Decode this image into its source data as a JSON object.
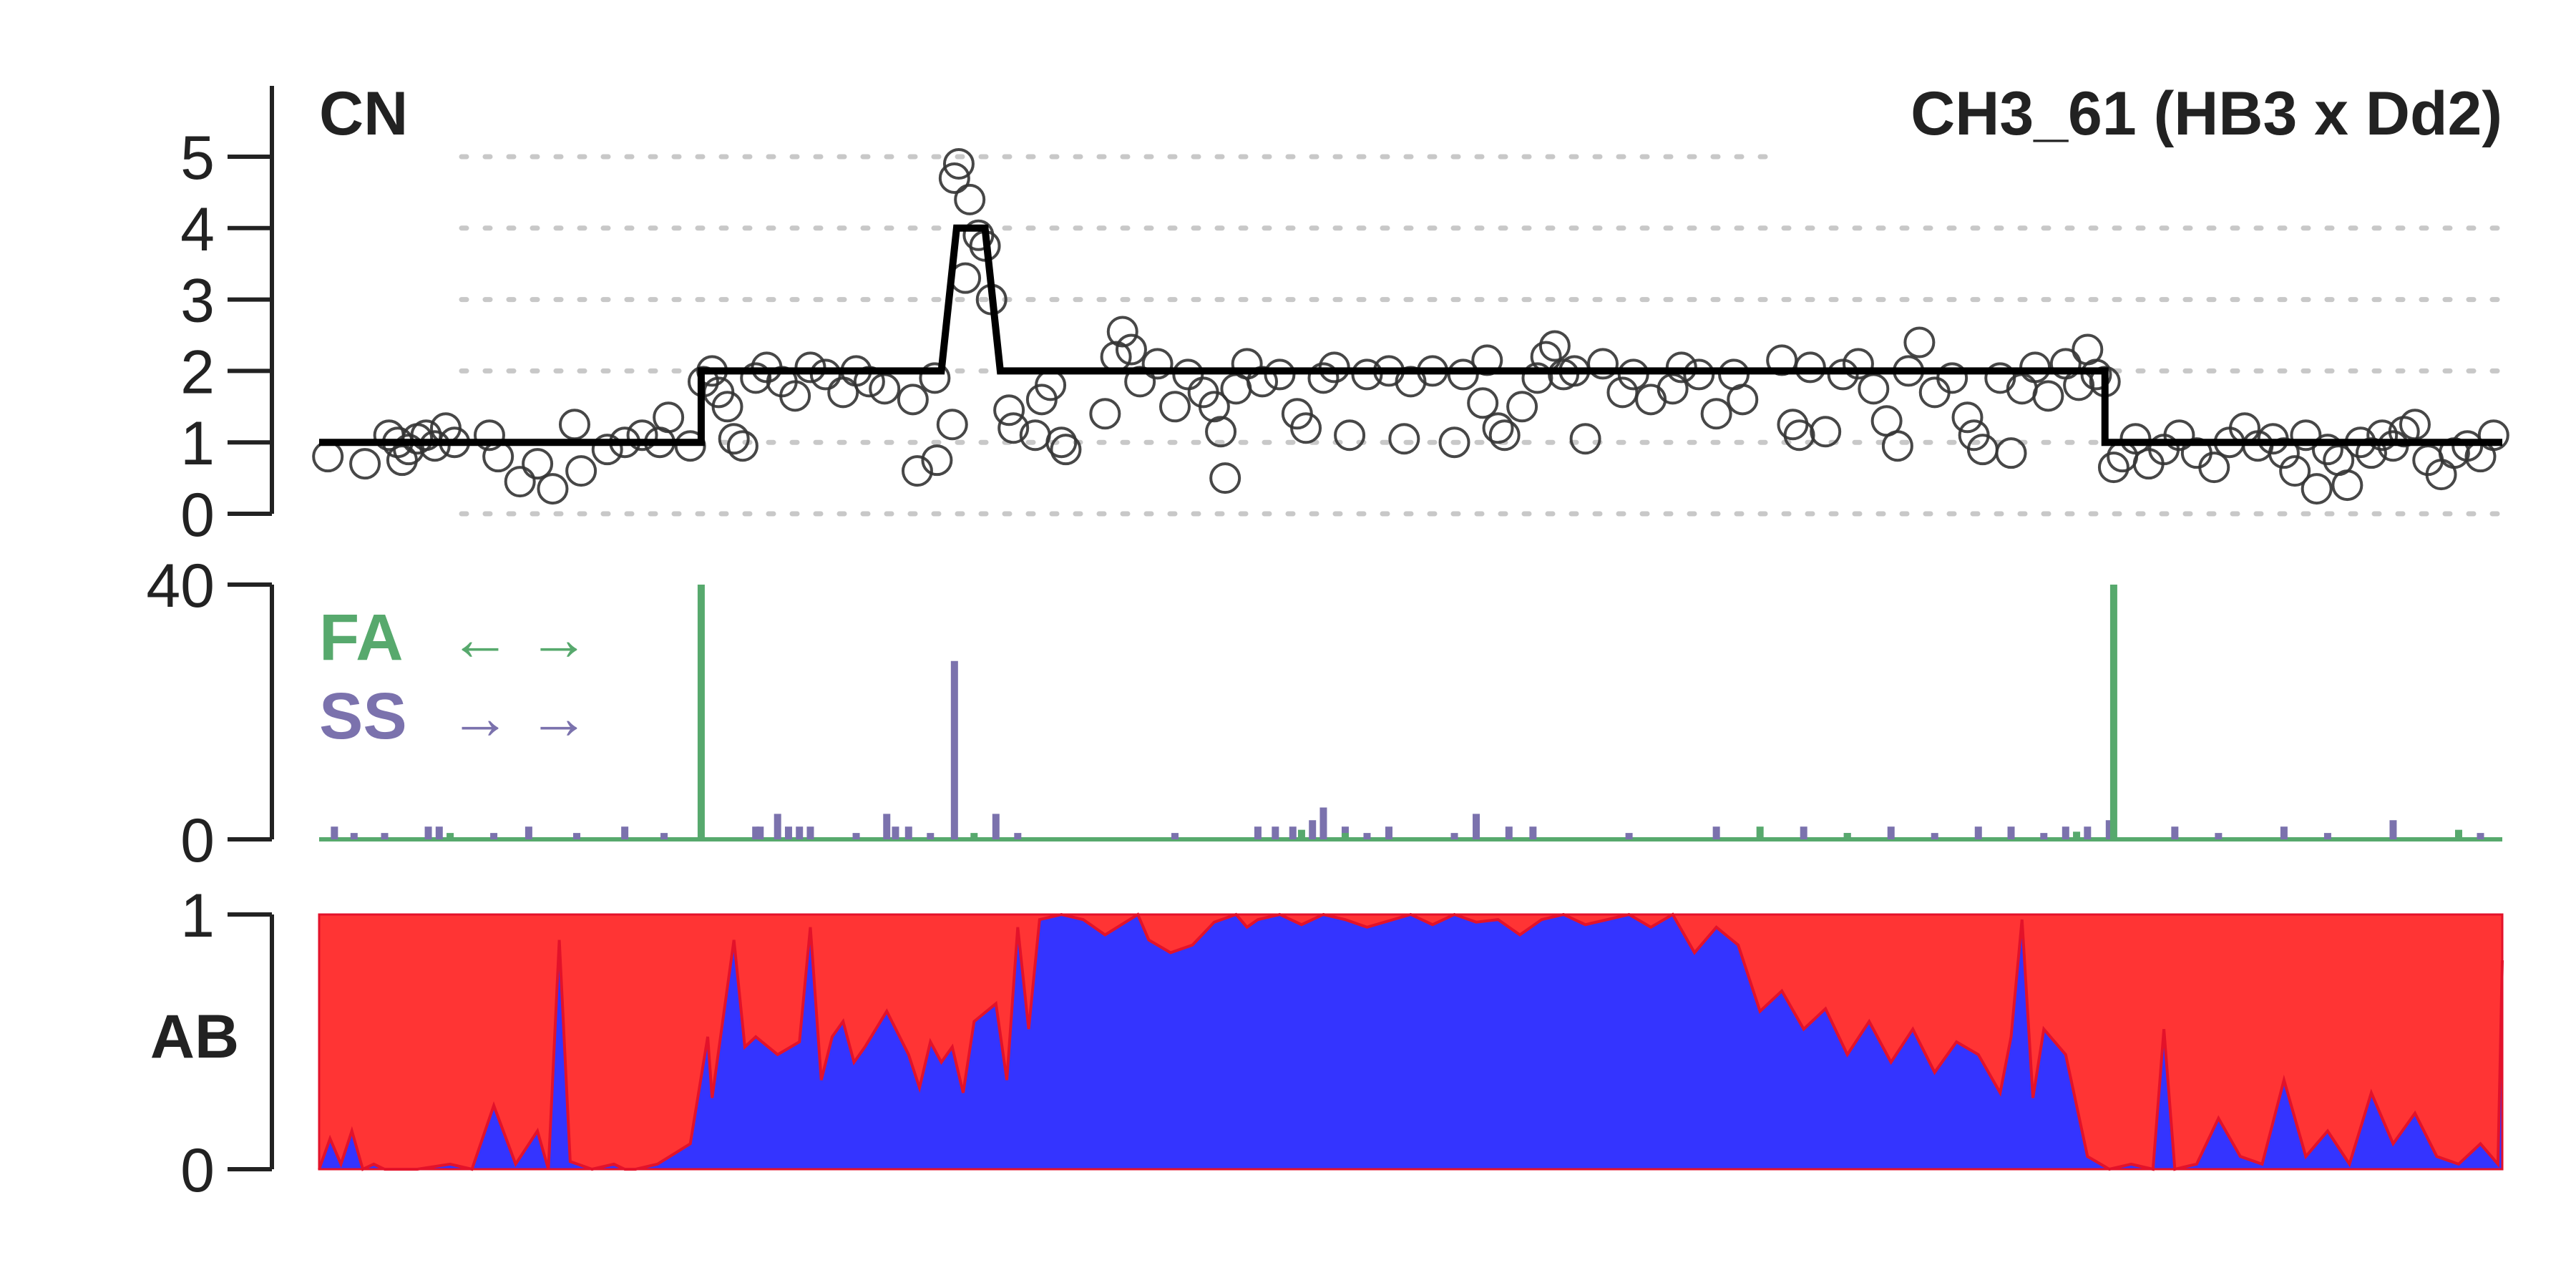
{
  "colors": {
    "axis": "#222222",
    "grid": "#c8c8c8",
    "points": "#333333",
    "segment": "#000000",
    "fa": "#57a96d",
    "ss": "#7b72ad",
    "ab_red": "#ff3434",
    "ab_blue": "#3434ff",
    "ab_edge": "#e3122a"
  },
  "title": "CH3_61 (HB3 x Dd2)",
  "chart_data": [
    {
      "type": "scatter",
      "panel": "copy-number",
      "ylabel": "CN",
      "ylim": [
        0,
        5
      ],
      "yticks": [
        0,
        1,
        2,
        3,
        4,
        5
      ],
      "grid": true,
      "xlim": [
        0,
        1
      ],
      "segments": [
        {
          "x_start": 0.0,
          "x_end": 0.175,
          "cn": 1
        },
        {
          "x_start": 0.175,
          "x_end": 0.285,
          "cn": 2
        },
        {
          "x_start": 0.292,
          "x_end": 0.305,
          "cn": 4
        },
        {
          "x_start": 0.312,
          "x_end": 0.818,
          "cn": 2
        },
        {
          "x_start": 0.818,
          "x_end": 1.0,
          "cn": 1
        }
      ],
      "points": [
        [
          0.004,
          0.8
        ],
        [
          0.021,
          0.7
        ],
        [
          0.032,
          1.1
        ],
        [
          0.036,
          1.0
        ],
        [
          0.038,
          0.75
        ],
        [
          0.041,
          0.9
        ],
        [
          0.045,
          1.05
        ],
        [
          0.049,
          1.1
        ],
        [
          0.053,
          0.95
        ],
        [
          0.058,
          1.2
        ],
        [
          0.062,
          1.0
        ],
        [
          0.078,
          1.1
        ],
        [
          0.082,
          0.8
        ],
        [
          0.092,
          0.45
        ],
        [
          0.1,
          0.7
        ],
        [
          0.107,
          0.35
        ],
        [
          0.117,
          1.25
        ],
        [
          0.12,
          0.6
        ],
        [
          0.132,
          0.9
        ],
        [
          0.14,
          1.0
        ],
        [
          0.148,
          1.1
        ],
        [
          0.156,
          1.0
        ],
        [
          0.16,
          1.35
        ],
        [
          0.17,
          0.95
        ],
        [
          0.176,
          1.85
        ],
        [
          0.18,
          2.0
        ],
        [
          0.183,
          1.7
        ],
        [
          0.187,
          1.5
        ],
        [
          0.19,
          1.05
        ],
        [
          0.194,
          0.95
        ],
        [
          0.2,
          1.9
        ],
        [
          0.205,
          2.05
        ],
        [
          0.212,
          1.85
        ],
        [
          0.218,
          1.65
        ],
        [
          0.225,
          2.05
        ],
        [
          0.232,
          1.95
        ],
        [
          0.24,
          1.7
        ],
        [
          0.246,
          2.0
        ],
        [
          0.252,
          1.85
        ],
        [
          0.259,
          1.75
        ],
        [
          0.272,
          1.6
        ],
        [
          0.274,
          0.6
        ],
        [
          0.282,
          1.9
        ],
        [
          0.283,
          0.75
        ],
        [
          0.29,
          1.25
        ],
        [
          0.291,
          4.7
        ],
        [
          0.293,
          4.9
        ],
        [
          0.296,
          3.3
        ],
        [
          0.298,
          4.4
        ],
        [
          0.302,
          3.9
        ],
        [
          0.305,
          3.75
        ],
        [
          0.308,
          3.0
        ],
        [
          0.316,
          1.45
        ],
        [
          0.318,
          1.2
        ],
        [
          0.328,
          1.1
        ],
        [
          0.331,
          1.6
        ],
        [
          0.335,
          1.8
        ],
        [
          0.34,
          1.0
        ],
        [
          0.342,
          0.9
        ],
        [
          0.36,
          1.4
        ],
        [
          0.365,
          2.2
        ],
        [
          0.368,
          2.55
        ],
        [
          0.372,
          2.3
        ],
        [
          0.376,
          1.85
        ],
        [
          0.384,
          2.1
        ],
        [
          0.392,
          1.5
        ],
        [
          0.398,
          1.95
        ],
        [
          0.405,
          1.7
        ],
        [
          0.41,
          1.5
        ],
        [
          0.413,
          1.15
        ],
        [
          0.415,
          0.5
        ],
        [
          0.42,
          1.75
        ],
        [
          0.425,
          2.1
        ],
        [
          0.432,
          1.85
        ],
        [
          0.44,
          1.95
        ],
        [
          0.448,
          1.4
        ],
        [
          0.452,
          1.2
        ],
        [
          0.46,
          1.9
        ],
        [
          0.465,
          2.05
        ],
        [
          0.472,
          1.1
        ],
        [
          0.48,
          1.95
        ],
        [
          0.49,
          2.0
        ],
        [
          0.497,
          1.05
        ],
        [
          0.5,
          1.85
        ],
        [
          0.51,
          2.0
        ],
        [
          0.52,
          1.0
        ],
        [
          0.524,
          1.95
        ],
        [
          0.533,
          1.55
        ],
        [
          0.535,
          2.15
        ],
        [
          0.54,
          1.2
        ],
        [
          0.543,
          1.1
        ],
        [
          0.551,
          1.5
        ],
        [
          0.558,
          1.9
        ],
        [
          0.562,
          2.2
        ],
        [
          0.566,
          2.35
        ],
        [
          0.57,
          1.95
        ],
        [
          0.575,
          2.0
        ],
        [
          0.58,
          1.05
        ],
        [
          0.588,
          2.1
        ],
        [
          0.597,
          1.7
        ],
        [
          0.602,
          1.95
        ],
        [
          0.61,
          1.6
        ],
        [
          0.62,
          1.75
        ],
        [
          0.624,
          2.05
        ],
        [
          0.632,
          1.95
        ],
        [
          0.64,
          1.4
        ],
        [
          0.648,
          1.95
        ],
        [
          0.652,
          1.6
        ],
        [
          0.67,
          2.15
        ],
        [
          0.675,
          1.25
        ],
        [
          0.678,
          1.1
        ],
        [
          0.683,
          2.05
        ],
        [
          0.69,
          1.15
        ],
        [
          0.698,
          1.95
        ],
        [
          0.705,
          2.1
        ],
        [
          0.712,
          1.75
        ],
        [
          0.718,
          1.3
        ],
        [
          0.723,
          0.95
        ],
        [
          0.728,
          2.0
        ],
        [
          0.733,
          2.4
        ],
        [
          0.74,
          1.7
        ],
        [
          0.748,
          1.9
        ],
        [
          0.755,
          1.35
        ],
        [
          0.758,
          1.1
        ],
        [
          0.762,
          0.9
        ],
        [
          0.77,
          1.9
        ],
        [
          0.775,
          0.85
        ],
        [
          0.78,
          1.75
        ],
        [
          0.786,
          2.05
        ],
        [
          0.792,
          1.65
        ],
        [
          0.8,
          2.1
        ],
        [
          0.806,
          1.8
        ],
        [
          0.81,
          2.3
        ],
        [
          0.814,
          1.95
        ],
        [
          0.818,
          1.85
        ],
        [
          0.822,
          0.65
        ],
        [
          0.826,
          0.8
        ],
        [
          0.832,
          1.05
        ],
        [
          0.838,
          0.7
        ],
        [
          0.845,
          0.9
        ],
        [
          0.852,
          1.1
        ],
        [
          0.86,
          0.85
        ],
        [
          0.868,
          0.65
        ],
        [
          0.875,
          1.0
        ],
        [
          0.882,
          1.2
        ],
        [
          0.888,
          0.95
        ],
        [
          0.895,
          1.05
        ],
        [
          0.9,
          0.85
        ],
        [
          0.905,
          0.6
        ],
        [
          0.91,
          1.1
        ],
        [
          0.915,
          0.35
        ],
        [
          0.92,
          0.9
        ],
        [
          0.925,
          0.75
        ],
        [
          0.929,
          0.4
        ],
        [
          0.935,
          1.0
        ],
        [
          0.94,
          0.85
        ],
        [
          0.945,
          1.1
        ],
        [
          0.95,
          0.95
        ],
        [
          0.955,
          1.15
        ],
        [
          0.96,
          1.25
        ],
        [
          0.966,
          0.75
        ],
        [
          0.972,
          0.55
        ],
        [
          0.978,
          0.85
        ],
        [
          0.984,
          0.95
        ],
        [
          0.99,
          0.8
        ],
        [
          0.996,
          1.1
        ]
      ]
    },
    {
      "type": "bar",
      "panel": "crossover-counts",
      "ylim": [
        0,
        40
      ],
      "yticks": [
        0,
        40
      ],
      "xlim": [
        0,
        1
      ],
      "legend": {
        "placement": "top-left",
        "entries": [
          {
            "name": "FA",
            "symbol": "← →"
          },
          {
            "name": "SS",
            "symbol": "→ →"
          }
        ]
      },
      "series": [
        {
          "name": "FA",
          "bars": [
            [
              0.175,
              40
            ],
            [
              0.822,
              40
            ],
            [
              0.3,
              1
            ],
            [
              0.45,
              1.5
            ],
            [
              0.47,
              1
            ],
            [
              0.66,
              2
            ],
            [
              0.7,
              1
            ],
            [
              0.805,
              1.2
            ],
            [
              0.98,
              1.5
            ],
            [
              0.06,
              1
            ]
          ]
        },
        {
          "name": "SS",
          "bars": [
            [
              0.291,
              28
            ],
            [
              0.007,
              2
            ],
            [
              0.016,
              1
            ],
            [
              0.03,
              1
            ],
            [
              0.05,
              2
            ],
            [
              0.055,
              2
            ],
            [
              0.08,
              1
            ],
            [
              0.096,
              2
            ],
            [
              0.118,
              1
            ],
            [
              0.14,
              2
            ],
            [
              0.158,
              1
            ],
            [
              0.2,
              2
            ],
            [
              0.202,
              2
            ],
            [
              0.21,
              4
            ],
            [
              0.215,
              2
            ],
            [
              0.22,
              2
            ],
            [
              0.225,
              2
            ],
            [
              0.246,
              1
            ],
            [
              0.26,
              4
            ],
            [
              0.264,
              2
            ],
            [
              0.27,
              2
            ],
            [
              0.28,
              1
            ],
            [
              0.31,
              4
            ],
            [
              0.32,
              1
            ],
            [
              0.392,
              1
            ],
            [
              0.43,
              2
            ],
            [
              0.438,
              2
            ],
            [
              0.446,
              2
            ],
            [
              0.455,
              3
            ],
            [
              0.46,
              5
            ],
            [
              0.47,
              2
            ],
            [
              0.48,
              1
            ],
            [
              0.49,
              2
            ],
            [
              0.52,
              1
            ],
            [
              0.53,
              4
            ],
            [
              0.545,
              2
            ],
            [
              0.556,
              2
            ],
            [
              0.6,
              1
            ],
            [
              0.64,
              2
            ],
            [
              0.68,
              2
            ],
            [
              0.7,
              1
            ],
            [
              0.72,
              2
            ],
            [
              0.74,
              1
            ],
            [
              0.76,
              2
            ],
            [
              0.775,
              2
            ],
            [
              0.79,
              1
            ],
            [
              0.8,
              2
            ],
            [
              0.81,
              2
            ],
            [
              0.82,
              3
            ],
            [
              0.85,
              2
            ],
            [
              0.87,
              1
            ],
            [
              0.9,
              2
            ],
            [
              0.92,
              1
            ],
            [
              0.95,
              3
            ],
            [
              0.99,
              1
            ]
          ]
        }
      ]
    },
    {
      "type": "area",
      "panel": "allele-balance",
      "ylabel": "AB",
      "ylim": [
        0,
        1
      ],
      "yticks": [
        0,
        1
      ],
      "xlim": [
        0,
        1
      ],
      "stacked": true,
      "series": [
        {
          "name": "blue",
          "color": "#3434ff"
        },
        {
          "name": "red",
          "color": "#ff3434"
        }
      ],
      "x": [
        0.0,
        0.005,
        0.01,
        0.015,
        0.02,
        0.025,
        0.03,
        0.045,
        0.06,
        0.07,
        0.08,
        0.09,
        0.1,
        0.105,
        0.11,
        0.115,
        0.125,
        0.135,
        0.14,
        0.145,
        0.155,
        0.17,
        0.178,
        0.18,
        0.19,
        0.195,
        0.2,
        0.21,
        0.22,
        0.225,
        0.23,
        0.235,
        0.24,
        0.245,
        0.25,
        0.255,
        0.26,
        0.27,
        0.275,
        0.28,
        0.285,
        0.29,
        0.295,
        0.3,
        0.31,
        0.315,
        0.32,
        0.325,
        0.33,
        0.34,
        0.35,
        0.36,
        0.375,
        0.38,
        0.39,
        0.4,
        0.41,
        0.42,
        0.425,
        0.43,
        0.44,
        0.45,
        0.46,
        0.47,
        0.48,
        0.5,
        0.51,
        0.52,
        0.53,
        0.54,
        0.55,
        0.56,
        0.57,
        0.58,
        0.6,
        0.61,
        0.62,
        0.63,
        0.64,
        0.65,
        0.66,
        0.67,
        0.68,
        0.69,
        0.7,
        0.71,
        0.72,
        0.73,
        0.74,
        0.75,
        0.76,
        0.77,
        0.775,
        0.78,
        0.785,
        0.79,
        0.8,
        0.81,
        0.82,
        0.83,
        0.84,
        0.845,
        0.85,
        0.86,
        0.87,
        0.88,
        0.89,
        0.9,
        0.91,
        0.92,
        0.93,
        0.94,
        0.95,
        0.96,
        0.97,
        0.98,
        0.99,
        0.998,
        1.0
      ],
      "values": [
        0.0,
        0.12,
        0.02,
        0.15,
        0.0,
        0.02,
        0.0,
        0.0,
        0.02,
        0.0,
        0.25,
        0.02,
        0.15,
        0.0,
        0.9,
        0.03,
        0.0,
        0.02,
        0.0,
        0.0,
        0.02,
        0.1,
        0.52,
        0.28,
        0.9,
        0.48,
        0.52,
        0.45,
        0.5,
        0.95,
        0.35,
        0.52,
        0.58,
        0.42,
        0.48,
        0.55,
        0.62,
        0.45,
        0.32,
        0.5,
        0.42,
        0.48,
        0.3,
        0.58,
        0.65,
        0.35,
        0.95,
        0.55,
        0.98,
        1.0,
        0.98,
        0.92,
        1.0,
        0.9,
        0.85,
        0.88,
        0.97,
        1.0,
        0.95,
        0.98,
        1.0,
        0.96,
        1.0,
        0.98,
        0.95,
        1.0,
        0.96,
        1.0,
        0.97,
        0.98,
        0.92,
        0.98,
        1.0,
        0.96,
        1.0,
        0.95,
        1.0,
        0.85,
        0.95,
        0.88,
        0.62,
        0.7,
        0.55,
        0.63,
        0.45,
        0.58,
        0.42,
        0.55,
        0.38,
        0.5,
        0.45,
        0.3,
        0.52,
        0.98,
        0.28,
        0.55,
        0.45,
        0.05,
        0.0,
        0.02,
        0.0,
        0.55,
        0.0,
        0.02,
        0.2,
        0.05,
        0.02,
        0.35,
        0.05,
        0.15,
        0.02,
        0.3,
        0.1,
        0.22,
        0.05,
        0.02,
        0.1,
        0.02,
        0.82
      ]
    }
  ]
}
